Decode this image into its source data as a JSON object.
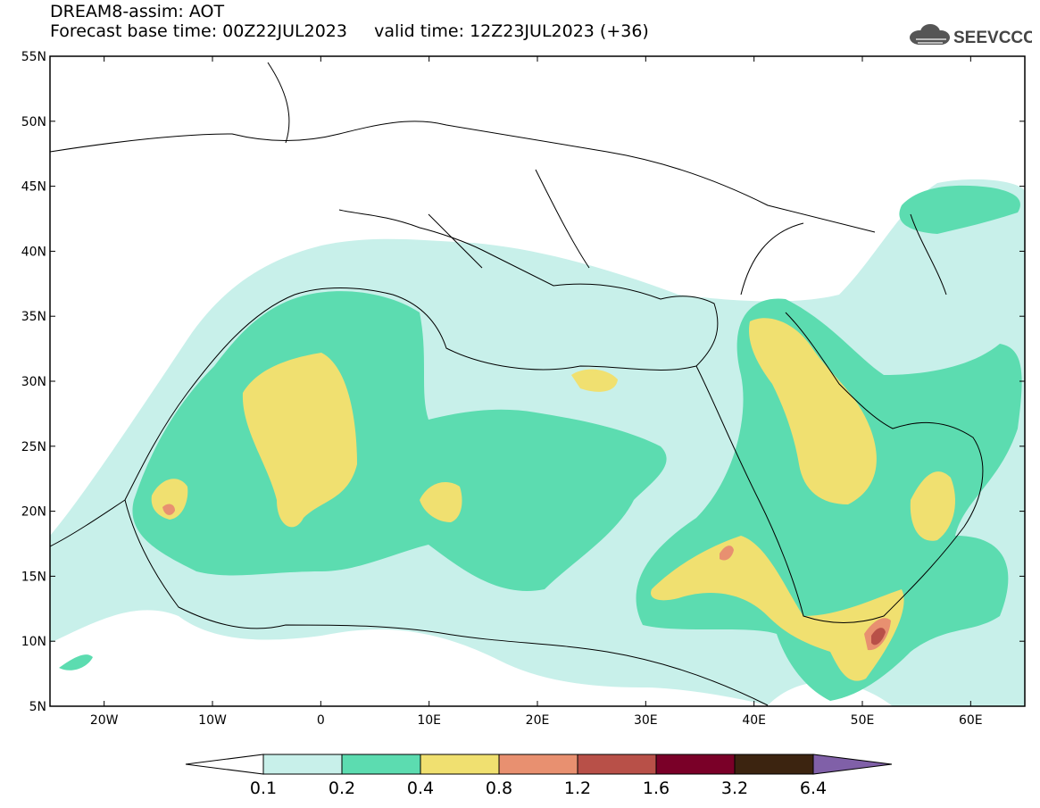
{
  "header": {
    "line1": "DREAM8-assim: AOT",
    "line2": "Forecast base time: 00Z22JUL2023     valid time: 12Z23JUL2023 (+36)"
  },
  "logo": {
    "text": "SEEVCCC",
    "icon": "cloud-icon"
  },
  "map": {
    "lon_range": [
      -25,
      65
    ],
    "lat_range": [
      5,
      55
    ],
    "lat_ticks": [
      "55N",
      "50N",
      "45N",
      "40N",
      "35N",
      "30N",
      "25N",
      "20N",
      "15N",
      "10N",
      "5N"
    ],
    "lon_ticks": [
      "20W",
      "10W",
      "0",
      "10E",
      "20E",
      "30E",
      "40E",
      "50E",
      "60E"
    ]
  },
  "colorbar": {
    "labels": [
      "0.1",
      "0.2",
      "0.4",
      "0.8",
      "1.2",
      "1.6",
      "3.2",
      "6.4"
    ],
    "colors": [
      "#c8f0ea",
      "#5cdcb0",
      "#f0e070",
      "#e89070",
      "#b85048",
      "#7a0028",
      "#3c2410",
      "#8060a8"
    ],
    "under_color": "#ffffff"
  }
}
